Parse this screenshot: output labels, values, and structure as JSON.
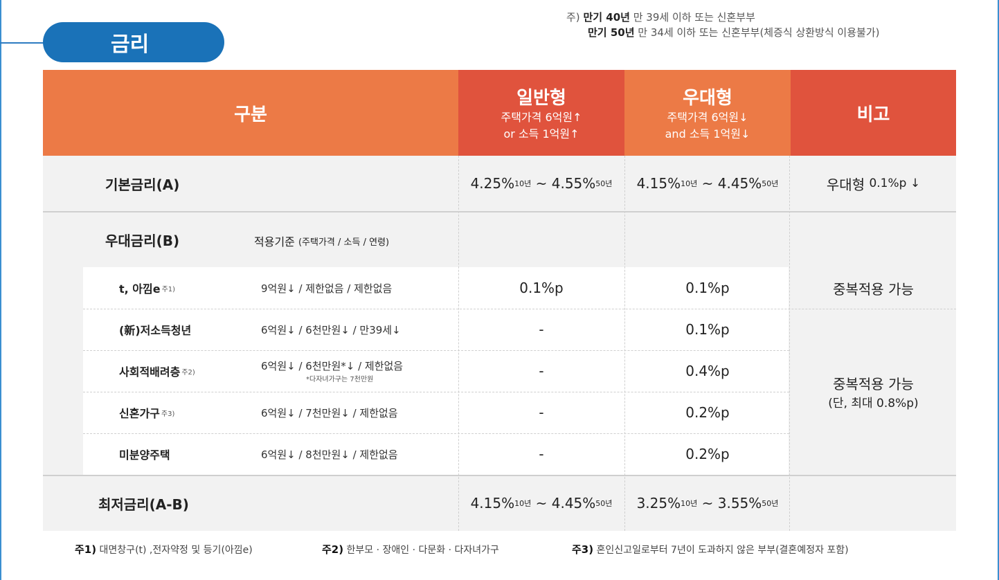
{
  "section_title": "금리",
  "top_note": {
    "prefix": "주)",
    "line1_bold": "만기 40년",
    "line1_text": "만 39세 이하 또는 신혼부부",
    "line2_bold": "만기 50년",
    "line2_text": "만 34세 이하 또는 신혼부부(체증식 상환방식 이용불가)"
  },
  "header": {
    "category": "구분",
    "general": {
      "title": "일반형",
      "line1": "주택가격 6억원↑",
      "line2": "or 소득 1억원↑"
    },
    "preferred": {
      "title": "우대형",
      "line1": "주택가격 6억원↓",
      "line2": "and 소득 1억원↓"
    },
    "remarks": "비고"
  },
  "base_rate": {
    "label": "기본금리(A)",
    "general": {
      "low": "4.25%",
      "low_term": "10년",
      "sep": "~",
      "high": "4.55%",
      "high_term": "50년"
    },
    "preferred": {
      "low": "4.15%",
      "low_term": "10년",
      "sep": "~",
      "high": "4.45%",
      "high_term": "50년"
    },
    "remark_label": "우대형",
    "remark_value": "0.1%p ↓"
  },
  "preferential": {
    "label": "우대금리(B)",
    "criteria_title": "적용기준",
    "criteria_sub": "(주택가격 / 소득 / 연령)",
    "rows": [
      {
        "name": "t, 아낌e",
        "sup": "주1)",
        "criteria": "9억원↓ / 제한없음 / 제한없음",
        "criteria_note": "",
        "general": "0.1%p",
        "preferred": "0.1%p"
      },
      {
        "name": "(新)저소득청년",
        "sup": "",
        "criteria": "6억원↓ / 6천만원↓ / 만39세↓",
        "criteria_note": "",
        "general": "-",
        "preferred": "0.1%p"
      },
      {
        "name": "사회적배려층",
        "sup": "주2)",
        "criteria": "6억원↓ / 6천만원*↓ / 제한없음",
        "criteria_note": "*다자녀가구는 7천만원",
        "general": "-",
        "preferred": "0.4%p"
      },
      {
        "name": "신혼가구",
        "sup": "주3)",
        "criteria": "6억원↓ / 7천만원↓ / 제한없음",
        "criteria_note": "",
        "general": "-",
        "preferred": "0.2%p"
      },
      {
        "name": "미분양주택",
        "sup": "",
        "criteria": "6억원↓ / 8천만원↓ / 제한없음",
        "criteria_note": "",
        "general": "-",
        "preferred": "0.2%p"
      }
    ],
    "remark1": "중복적용 가능",
    "remark2_line1": "중복적용 가능",
    "remark2_line2": "(단, 최대 0.8%p)"
  },
  "min_rate": {
    "label": "최저금리(A-B)",
    "general": {
      "low": "4.15%",
      "low_term": "10년",
      "sep": "~",
      "high": "4.45%",
      "high_term": "50년"
    },
    "preferred": {
      "low": "3.25%",
      "low_term": "10년",
      "sep": "~",
      "high": "3.55%",
      "high_term": "50년"
    }
  },
  "footnotes": [
    {
      "key": "주1)",
      "text": "대면창구(t) ,전자약정 및 등기(아낌e)"
    },
    {
      "key": "주2)",
      "text": "한부모 · 장애인 · 다문화 · 다자녀가구"
    },
    {
      "key": "주3)",
      "text": "혼인신고일로부터 7년이 도과하지 않은 부부(결혼예정자 포함)"
    }
  ],
  "colors": {
    "accent_blue": "#1a72b8",
    "header_orange": "#ec7a46",
    "header_red": "#e0533d",
    "row_gray": "#f2f2f2"
  }
}
